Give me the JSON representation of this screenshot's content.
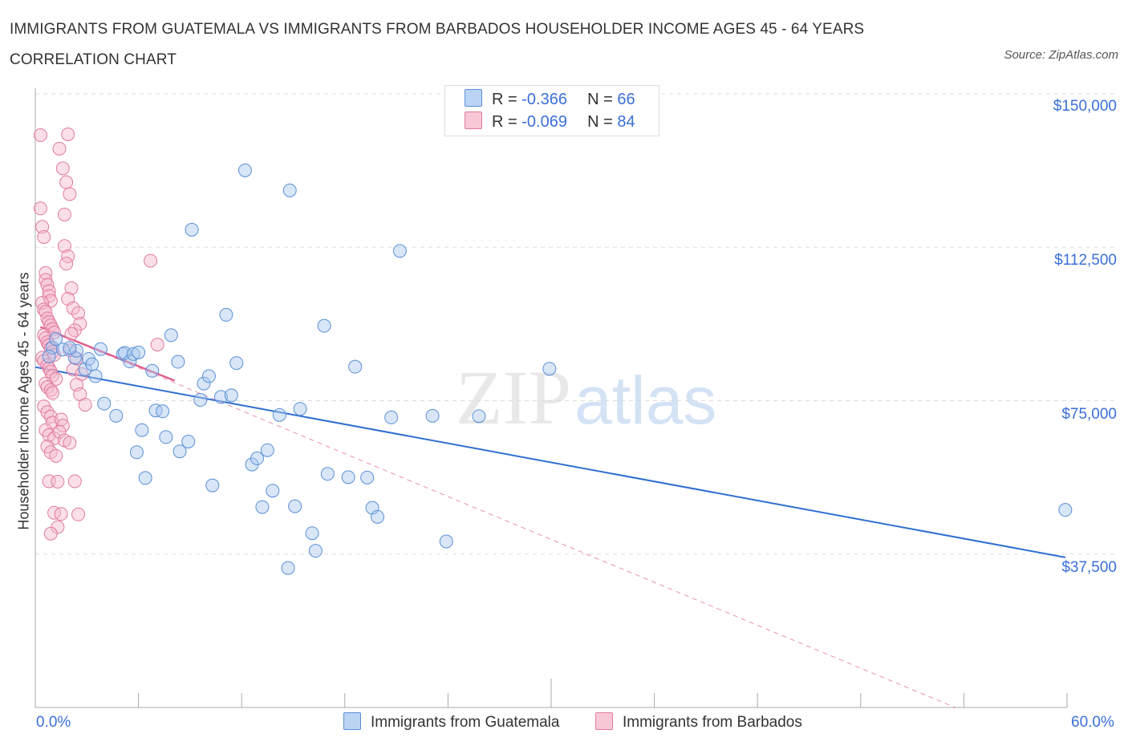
{
  "title": "IMMIGRANTS FROM GUATEMALA VS IMMIGRANTS FROM BARBADOS HOUSEHOLDER INCOME AGES 45 - 64 YEARS CORRELATION CHART",
  "source": "Source: ZipAtlas.com",
  "watermark": {
    "zip": "ZIP",
    "atlas": "atlas"
  },
  "legend": {
    "r_label": "R =",
    "n_label": "N =",
    "series": [
      {
        "r": "-0.366",
        "n": "66"
      },
      {
        "r": "-0.069",
        "n": "84"
      }
    ]
  },
  "bottom_legend": [
    "Immigrants from Guatemala",
    "Immigrants from Barbados"
  ],
  "colors": {
    "guatemala_fill": "#a9c8f0",
    "guatemala_stroke": "#5a8fd6",
    "guatemala_line": "#2f6fd0",
    "barbados_fill": "#f5b8cc",
    "barbados_stroke": "#e07aa0",
    "barbados_line": "#e0608e",
    "tick_text": "#3a6fd8",
    "grid": "#dddddd"
  },
  "chart_data": {
    "type": "scatter",
    "title": "IMMIGRANTS FROM GUATEMALA VS IMMIGRANTS FROM BARBADOS HOUSEHOLDER INCOME AGES 45 - 64 YEARS CORRELATION CHART",
    "xlabel": "",
    "ylabel": "Householder Income Ages 45 - 64 years",
    "xlim": [
      0,
      60
    ],
    "ylim": [
      0,
      150000
    ],
    "x_tick_labels": [
      "0.0%",
      "60.0%"
    ],
    "y_ticks": [
      37500,
      75000,
      112500,
      150000
    ],
    "y_tick_labels": [
      "$37,500",
      "$75,000",
      "$112,500",
      "$150,000"
    ],
    "grid": true,
    "legend_position": "top-center",
    "series": [
      {
        "name": "Immigrants from Guatemala",
        "r": -0.366,
        "n": 66,
        "trend": {
          "x": [
            0,
            59.9
          ],
          "y": [
            83200,
            36700
          ],
          "style": "solid"
        },
        "points": [
          [
            1.0,
            88000
          ],
          [
            1.6,
            87500
          ],
          [
            2.3,
            85500
          ],
          [
            2.4,
            87200
          ],
          [
            2.9,
            82700
          ],
          [
            3.1,
            85200
          ],
          [
            3.5,
            81000
          ],
          [
            3.8,
            87600
          ],
          [
            4.0,
            74300
          ],
          [
            4.7,
            71300
          ],
          [
            5.1,
            86400
          ],
          [
            5.2,
            86700
          ],
          [
            5.5,
            84600
          ],
          [
            5.7,
            86400
          ],
          [
            6.0,
            86800
          ],
          [
            5.9,
            62400
          ],
          [
            6.2,
            67800
          ],
          [
            6.4,
            56100
          ],
          [
            6.8,
            82300
          ],
          [
            7.0,
            72600
          ],
          [
            7.4,
            72400
          ],
          [
            7.6,
            66100
          ],
          [
            7.9,
            91000
          ],
          [
            8.3,
            84500
          ],
          [
            8.4,
            62600
          ],
          [
            8.9,
            65000
          ],
          [
            9.1,
            116800
          ],
          [
            9.6,
            75200
          ],
          [
            9.8,
            79200
          ],
          [
            10.1,
            81000
          ],
          [
            10.3,
            54300
          ],
          [
            10.8,
            75900
          ],
          [
            11.1,
            96000
          ],
          [
            11.4,
            76300
          ],
          [
            11.7,
            84200
          ],
          [
            12.2,
            131300
          ],
          [
            12.6,
            59400
          ],
          [
            12.9,
            60900
          ],
          [
            13.2,
            49000
          ],
          [
            13.5,
            62900
          ],
          [
            13.8,
            53000
          ],
          [
            14.2,
            71500
          ],
          [
            14.8,
            126400
          ],
          [
            15.1,
            49200
          ],
          [
            15.4,
            73000
          ],
          [
            16.1,
            42600
          ],
          [
            16.3,
            38300
          ],
          [
            16.8,
            93300
          ],
          [
            17.0,
            57100
          ],
          [
            18.2,
            56300
          ],
          [
            18.6,
            83300
          ],
          [
            19.3,
            56200
          ],
          [
            19.6,
            48800
          ],
          [
            19.9,
            46600
          ],
          [
            20.7,
            70900
          ],
          [
            21.2,
            111600
          ],
          [
            23.1,
            71300
          ],
          [
            23.9,
            40600
          ],
          [
            25.8,
            71200
          ],
          [
            29.9,
            82800
          ],
          [
            14.7,
            34100
          ],
          [
            59.9,
            48300
          ],
          [
            1.2,
            90100
          ],
          [
            2.0,
            87900
          ],
          [
            0.8,
            85800
          ],
          [
            3.3,
            83900
          ]
        ]
      },
      {
        "name": "Immigrants from Barbados",
        "r": -0.069,
        "n": 84,
        "trend": {
          "x": [
            0.3,
            8.1
          ],
          "y": [
            93000,
            79900
          ],
          "style": "solid",
          "extended_x": [
            0.3,
            53.5
          ],
          "extended_y": [
            93000,
            0
          ]
        },
        "points": [
          [
            0.3,
            139900
          ],
          [
            0.3,
            122000
          ],
          [
            0.4,
            117500
          ],
          [
            0.5,
            115000
          ],
          [
            0.6,
            106200
          ],
          [
            0.6,
            104500
          ],
          [
            0.7,
            103300
          ],
          [
            0.8,
            101800
          ],
          [
            0.8,
            100600
          ],
          [
            0.9,
            99400
          ],
          [
            0.4,
            98900
          ],
          [
            0.5,
            97300
          ],
          [
            0.6,
            96700
          ],
          [
            0.7,
            95100
          ],
          [
            0.8,
            94200
          ],
          [
            0.9,
            93400
          ],
          [
            1.0,
            92500
          ],
          [
            1.1,
            91700
          ],
          [
            0.5,
            91000
          ],
          [
            0.6,
            90300
          ],
          [
            0.7,
            89300
          ],
          [
            0.8,
            88600
          ],
          [
            0.9,
            87800
          ],
          [
            1.0,
            86900
          ],
          [
            1.1,
            86200
          ],
          [
            0.4,
            85500
          ],
          [
            0.5,
            84700
          ],
          [
            0.7,
            83700
          ],
          [
            0.8,
            82900
          ],
          [
            0.9,
            82100
          ],
          [
            1.0,
            81100
          ],
          [
            1.2,
            80300
          ],
          [
            0.6,
            79200
          ],
          [
            0.7,
            78300
          ],
          [
            0.9,
            77600
          ],
          [
            1.0,
            76900
          ],
          [
            0.5,
            73600
          ],
          [
            0.7,
            72200
          ],
          [
            0.9,
            71100
          ],
          [
            1.0,
            69600
          ],
          [
            0.6,
            67800
          ],
          [
            0.8,
            66600
          ],
          [
            1.1,
            65800
          ],
          [
            0.7,
            63800
          ],
          [
            0.9,
            62400
          ],
          [
            1.2,
            61500
          ],
          [
            0.8,
            55300
          ],
          [
            1.3,
            55200
          ],
          [
            1.1,
            47600
          ],
          [
            1.3,
            44100
          ],
          [
            1.5,
            47300
          ],
          [
            0.9,
            42500
          ],
          [
            1.4,
            136600
          ],
          [
            1.6,
            131800
          ],
          [
            1.9,
            140100
          ],
          [
            1.8,
            128400
          ],
          [
            2.0,
            125500
          ],
          [
            1.7,
            120500
          ],
          [
            1.7,
            112800
          ],
          [
            1.9,
            110300
          ],
          [
            1.8,
            108500
          ],
          [
            2.1,
            102500
          ],
          [
            1.9,
            99900
          ],
          [
            2.2,
            97600
          ],
          [
            2.5,
            96400
          ],
          [
            2.6,
            93800
          ],
          [
            2.3,
            92200
          ],
          [
            2.1,
            91300
          ],
          [
            2.0,
            87300
          ],
          [
            2.4,
            85300
          ],
          [
            2.2,
            82600
          ],
          [
            2.7,
            81500
          ],
          [
            2.4,
            78900
          ],
          [
            2.6,
            76600
          ],
          [
            2.9,
            74000
          ],
          [
            1.5,
            70400
          ],
          [
            1.6,
            68900
          ],
          [
            1.4,
            67400
          ],
          [
            1.7,
            65300
          ],
          [
            2.0,
            64700
          ],
          [
            2.3,
            55300
          ],
          [
            2.5,
            47200
          ],
          [
            6.7,
            109200
          ],
          [
            7.1,
            88700
          ]
        ]
      }
    ]
  }
}
